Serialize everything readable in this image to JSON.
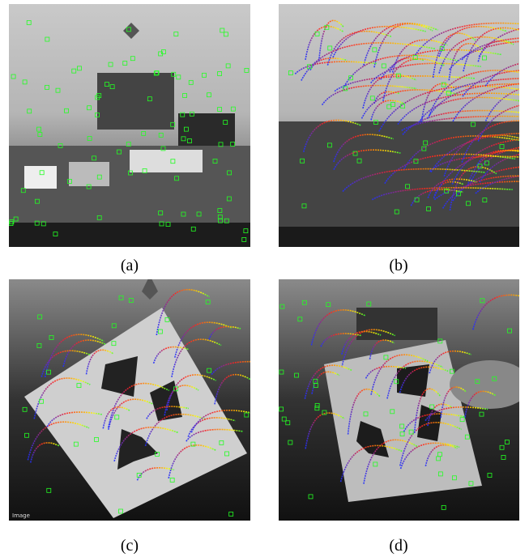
{
  "panels": [
    {
      "caption": "(a)"
    },
    {
      "caption": "(b)"
    },
    {
      "caption": "(c)",
      "overlay_label": "Image"
    },
    {
      "caption": "(d)"
    }
  ]
}
